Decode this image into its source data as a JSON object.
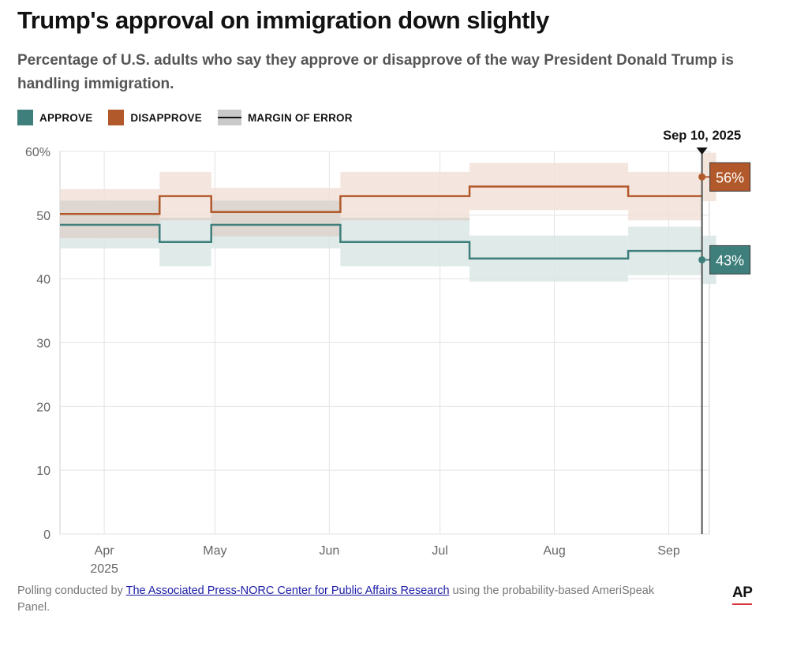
{
  "header": {
    "title": "Trump's approval on immigration down slightly",
    "subtitle": "Percentage of U.S. adults who say they approve or disapprove of the way President Donald Trump is handling immigration."
  },
  "legend": {
    "approve": "APPROVE",
    "disapprove": "DISAPPROVE",
    "moe": "MARGIN OF ERROR"
  },
  "footer": {
    "prefix": "Polling conducted by ",
    "link": "The Associated Press-NORC Center for Public Affairs Research",
    "suffix": " using the probability-based AmeriSpeak Panel.",
    "logo": "AP"
  },
  "colors": {
    "approve": "#3e7f7c",
    "disapprove": "#b2592b",
    "approve_band": "#d9e6e5",
    "disapprove_band": "#f2e1d8",
    "overlap_band": "#d6d1cd",
    "grid": "#e3e3e3"
  },
  "chart_data": {
    "type": "line",
    "step": true,
    "x_axis": {
      "ticks": [
        {
          "date": "2025-04-01",
          "label": "Apr",
          "sublabel": "2025"
        },
        {
          "date": "2025-05-01",
          "label": "May"
        },
        {
          "date": "2025-06-01",
          "label": "Jun"
        },
        {
          "date": "2025-07-01",
          "label": "Jul"
        },
        {
          "date": "2025-08-01",
          "label": "Aug"
        },
        {
          "date": "2025-09-01",
          "label": "Sep"
        }
      ],
      "range": [
        "2025-03-20",
        "2025-09-12"
      ]
    },
    "y_axis": {
      "range": [
        0,
        60
      ],
      "ticks": [
        0,
        10,
        20,
        30,
        40,
        50,
        60
      ],
      "top_tick_label": "60%"
    },
    "grid": true,
    "series": [
      {
        "name": "APPROVE",
        "key": "approve",
        "segments": [
          {
            "start": "2025-03-20",
            "end": "2025-04-16",
            "value": 48.5,
            "low": 44.8,
            "high": 52.3
          },
          {
            "start": "2025-04-16",
            "end": "2025-04-30",
            "value": 45.8,
            "low": 42.0,
            "high": 49.6
          },
          {
            "start": "2025-04-30",
            "end": "2025-06-04",
            "value": 48.5,
            "low": 44.8,
            "high": 52.3
          },
          {
            "start": "2025-06-04",
            "end": "2025-07-09",
            "value": 45.8,
            "low": 42.0,
            "high": 49.6
          },
          {
            "start": "2025-07-09",
            "end": "2025-08-21",
            "value": 43.2,
            "low": 39.6,
            "high": 46.8
          },
          {
            "start": "2025-08-21",
            "end": "2025-09-10",
            "value": 44.4,
            "low": 40.6,
            "high": 48.2
          }
        ],
        "latest": {
          "date": "2025-09-10",
          "value": 43,
          "label": "43%",
          "low": 39.2,
          "high": 46.8
        }
      },
      {
        "name": "DISAPPROVE",
        "key": "disapprove",
        "segments": [
          {
            "start": "2025-03-20",
            "end": "2025-04-16",
            "value": 50.2,
            "low": 46.4,
            "high": 54.1
          },
          {
            "start": "2025-04-16",
            "end": "2025-04-30",
            "value": 53.0,
            "low": 49.2,
            "high": 56.8
          },
          {
            "start": "2025-04-30",
            "end": "2025-06-04",
            "value": 50.5,
            "low": 46.7,
            "high": 54.3
          },
          {
            "start": "2025-06-04",
            "end": "2025-07-09",
            "value": 53.0,
            "low": 49.2,
            "high": 56.8
          },
          {
            "start": "2025-07-09",
            "end": "2025-08-21",
            "value": 54.5,
            "low": 50.8,
            "high": 58.2
          },
          {
            "start": "2025-08-21",
            "end": "2025-09-10",
            "value": 53.0,
            "low": 49.2,
            "high": 56.8
          }
        ],
        "latest": {
          "date": "2025-09-10",
          "value": 56,
          "label": "56%",
          "low": 52.2,
          "high": 59.8
        }
      }
    ],
    "annotation": {
      "date": "2025-09-10",
      "label": "Sep 10, 2025"
    }
  }
}
